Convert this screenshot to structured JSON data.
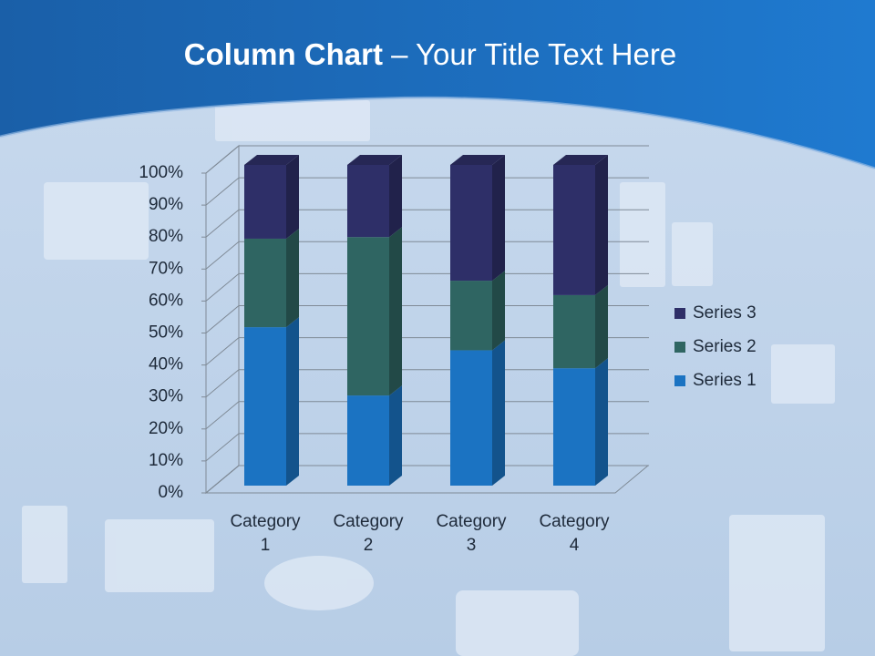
{
  "chart_data": {
    "type": "bar",
    "stacked": true,
    "title_lead": "Column Chart",
    "title": "– Your Title Text Here",
    "categories": [
      "Category 1",
      "Category 2",
      "Category 3",
      "Category 4"
    ],
    "series": [
      {
        "name": "Series 1",
        "color": "#1b73c2",
        "values": [
          49.4,
          28.1,
          42.2,
          36.6
        ]
      },
      {
        "name": "Series 2",
        "color": "#2f6562",
        "values": [
          27.6,
          49.4,
          21.7,
          22.8
        ]
      },
      {
        "name": "Series 3",
        "color": "#2e2f68",
        "values": [
          23.0,
          22.5,
          36.1,
          40.6
        ]
      }
    ],
    "ylim": [
      0,
      100
    ],
    "yticks": [
      {
        "value": 0,
        "label": "0%"
      },
      {
        "value": 10,
        "label": "10%"
      },
      {
        "value": 20,
        "label": "20%"
      },
      {
        "value": 30,
        "label": "30%"
      },
      {
        "value": 40,
        "label": "40%"
      },
      {
        "value": 50,
        "label": "50%"
      },
      {
        "value": 60,
        "label": "60%"
      },
      {
        "value": 70,
        "label": "70%"
      },
      {
        "value": 80,
        "label": "80%"
      },
      {
        "value": 90,
        "label": "90%"
      },
      {
        "value": 100,
        "label": "100%"
      }
    ],
    "grid": true,
    "legend": "right"
  }
}
